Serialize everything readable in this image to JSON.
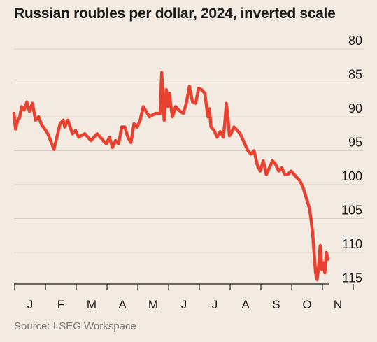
{
  "chart_data": {
    "type": "line",
    "title": "Russian roubles per dollar, 2024, inverted scale",
    "source": "Source: LSEG Workspace",
    "inverted_y": true,
    "ylim": [
      80,
      115
    ],
    "y_ticks": [
      80,
      85,
      90,
      95,
      100,
      105,
      110,
      115
    ],
    "x_ticks": [
      "J",
      "F",
      "M",
      "A",
      "M",
      "J",
      "J",
      "A",
      "S",
      "O",
      "N"
    ],
    "grid": true,
    "series": [
      {
        "color": "#e8412f",
        "x": [
          0.0,
          0.05,
          0.12,
          0.18,
          0.25,
          0.33,
          0.42,
          0.5,
          0.6,
          0.7,
          0.8,
          0.9,
          1.0,
          1.1,
          1.3,
          1.5,
          1.6,
          1.65,
          1.75,
          1.9,
          2.0,
          2.1,
          2.3,
          2.5,
          2.7,
          2.9,
          3.0,
          3.1,
          3.2,
          3.3,
          3.4,
          3.5,
          3.6,
          3.7,
          3.8,
          3.9,
          4.0,
          4.1,
          4.2,
          4.4,
          4.6,
          4.75,
          4.8,
          4.88,
          4.95,
          5.0,
          5.05,
          5.1,
          5.15,
          5.25,
          5.35,
          5.5,
          5.6,
          5.7,
          5.8,
          5.9,
          6.0,
          6.1,
          6.2,
          6.3,
          6.35,
          6.4,
          6.5,
          6.6,
          6.7,
          6.8,
          6.85,
          6.9,
          6.95,
          7.0,
          7.05,
          7.15,
          7.25,
          7.35,
          7.5,
          7.6,
          7.7,
          7.8,
          7.9,
          8.0,
          8.1,
          8.2,
          8.3,
          8.4,
          8.5,
          8.6,
          8.7,
          8.8,
          8.9,
          9.0,
          9.1,
          9.2,
          9.3,
          9.4,
          9.5,
          9.6,
          9.65,
          9.7,
          9.75,
          9.8,
          9.85,
          9.9,
          9.95,
          10.0,
          10.05,
          10.1,
          10.15,
          10.2
        ],
        "y": [
          89.5,
          91.8,
          90.5,
          90.2,
          88.5,
          89.0,
          87.8,
          89.2,
          88.0,
          90.5,
          90.0,
          91.2,
          91.8,
          92.5,
          94.8,
          91.0,
          90.5,
          91.5,
          90.5,
          92.5,
          92.0,
          93.0,
          92.5,
          93.5,
          92.5,
          93.5,
          94.0,
          93.0,
          94.5,
          93.5,
          94.0,
          91.5,
          91.5,
          93.0,
          93.8,
          91.0,
          91.5,
          90.5,
          88.5,
          90.0,
          89.5,
          89.5,
          83.5,
          90.5,
          86.0,
          88.5,
          86.5,
          88.5,
          90.0,
          88.5,
          89.0,
          89.5,
          88.0,
          85.5,
          87.8,
          88.0,
          85.8,
          86.0,
          86.5,
          90.0,
          88.8,
          91.5,
          92.0,
          93.0,
          92.2,
          93.0,
          91.0,
          88.0,
          90.0,
          92.8,
          92.5,
          91.5,
          92.0,
          92.5,
          94.0,
          95.0,
          95.5,
          95.0,
          97.0,
          98.0,
          96.5,
          98.5,
          97.5,
          96.5,
          97.0,
          98.0,
          97.5,
          98.5,
          98.5,
          98.0,
          98.5,
          99.0,
          99.5,
          100.5,
          102.0,
          103.5,
          105.0,
          107.0,
          110.0,
          113.0,
          114.0,
          112.0,
          109.0,
          112.5,
          111.5,
          113.0,
          110.0,
          111.0
        ]
      }
    ]
  }
}
